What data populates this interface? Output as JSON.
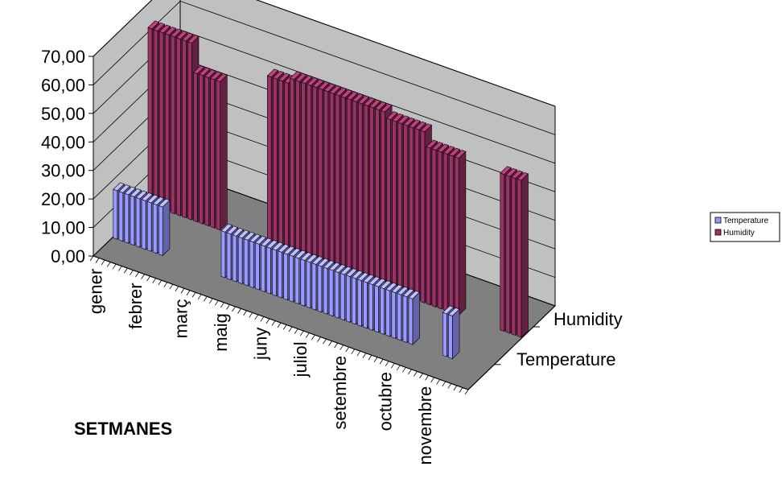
{
  "chart_data": {
    "type": "bar",
    "subtype": "3d-column",
    "xlabel": "SETMANES",
    "ylabel": "",
    "ylim": [
      0,
      70
    ],
    "yticks": [
      "0,00",
      "10,00",
      "20,00",
      "30,00",
      "40,00",
      "50,00",
      "60,00",
      "70,00"
    ],
    "month_labels": [
      "gener",
      "febrer",
      "març",
      "maig",
      "juny",
      "juliol",
      "setembre",
      "octubre",
      "novembre"
    ],
    "series": [
      {
        "name": "Temperature",
        "color": "#9999ff",
        "values": [
          17,
          17,
          17,
          17,
          17,
          17,
          17,
          17,
          17,
          null,
          null,
          null,
          null,
          null,
          null,
          null,
          null,
          null,
          null,
          16,
          16,
          16,
          16,
          16,
          16,
          16,
          16,
          16,
          16,
          16,
          16,
          16,
          16,
          16,
          16,
          16,
          16,
          16,
          16,
          16,
          16,
          16,
          16,
          16,
          16,
          16,
          16,
          16,
          16,
          16,
          16,
          16,
          16,
          null,
          null,
          null,
          null,
          null,
          15,
          15,
          null,
          null,
          null,
          null,
          null,
          null
        ]
      },
      {
        "name": "Humidity",
        "color": "#993366",
        "values": [
          62,
          62,
          62,
          62,
          62,
          62,
          62,
          62,
          52,
          52,
          52,
          52,
          52,
          null,
          null,
          null,
          null,
          null,
          null,
          null,
          null,
          60,
          60,
          60,
          60,
          62,
          62,
          62,
          62,
          62,
          62,
          62,
          62,
          62,
          62,
          62,
          62,
          62,
          62,
          62,
          62,
          62,
          60,
          60,
          60,
          60,
          60,
          60,
          60,
          55,
          55,
          55,
          55,
          55,
          55,
          null,
          null,
          null,
          null,
          null,
          null,
          null,
          55,
          55,
          55,
          55
        ]
      }
    ],
    "legend": {
      "position": "right",
      "entries": [
        "Temperature",
        "Humidity"
      ]
    },
    "grid": true
  },
  "colors": {
    "wall": "#c0c0c0",
    "floor": "#808080",
    "temperature": "#9999ff",
    "humidity": "#993366"
  }
}
